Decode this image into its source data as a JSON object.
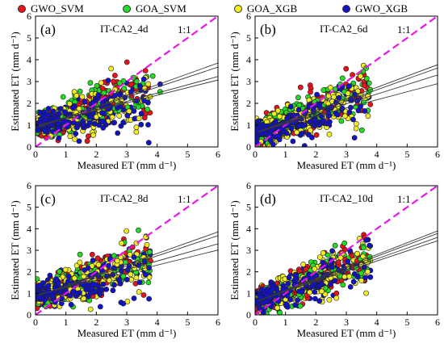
{
  "legend": [
    {
      "name": "GWO_SVM",
      "color": "#e8131b"
    },
    {
      "name": "GOA_SVM",
      "color": "#22dd22"
    },
    {
      "name": "GOA_XGB",
      "color": "#f2ee22"
    },
    {
      "name": "GWO_XGB",
      "color": "#1212c8"
    }
  ],
  "chart_data": [
    {
      "type": "scatter",
      "panel_label": "(a)",
      "title": "IT-CA2_4d",
      "line_label": "1:1",
      "xlabel": "Measured ET (mm d⁻¹)",
      "ylabel": "Estimated ET (mm d⁻¹)",
      "xlim": [
        0,
        6
      ],
      "ylim": [
        0,
        6
      ],
      "xticks": [
        "0",
        "1",
        "2",
        "3",
        "4",
        "5",
        "6"
      ],
      "yticks": [
        "0",
        "1",
        "2",
        "3",
        "4",
        "5",
        "6"
      ],
      "measured_range": [
        0.1,
        4.0
      ],
      "series": [
        {
          "name": "GWO_SVM",
          "fit": {
            "slope": 0.5,
            "intercept": 0.85
          }
        },
        {
          "name": "GOA_SVM",
          "fit": {
            "slope": 0.46,
            "intercept": 0.9
          }
        },
        {
          "name": "GOA_XGB",
          "fit": {
            "slope": 0.38,
            "intercept": 0.95
          }
        },
        {
          "name": "GWO_XGB",
          "fit": {
            "slope": 0.35,
            "intercept": 0.97
          }
        }
      ]
    },
    {
      "type": "scatter",
      "panel_label": "(b)",
      "title": "IT-CA2_6d",
      "line_label": "1:1",
      "xlabel": "Measured ET (mm d⁻¹)",
      "ylabel": "Estimated ET (mm d⁻¹)",
      "xlim": [
        0,
        6
      ],
      "ylim": [
        0,
        6
      ],
      "xticks": [
        "0",
        "1",
        "2",
        "3",
        "4",
        "5",
        "6"
      ],
      "yticks": [
        "0",
        "1",
        "2",
        "3",
        "4",
        "5",
        "6"
      ],
      "measured_range": [
        0.1,
        4.0
      ],
      "series": [
        {
          "name": "GWO_SVM",
          "fit": {
            "slope": 0.52,
            "intercept": 0.65
          }
        },
        {
          "name": "GOA_SVM",
          "fit": {
            "slope": 0.5,
            "intercept": 0.62
          }
        },
        {
          "name": "GOA_XGB",
          "fit": {
            "slope": 0.44,
            "intercept": 0.66
          }
        },
        {
          "name": "GWO_XGB",
          "fit": {
            "slope": 0.37,
            "intercept": 0.68
          }
        }
      ]
    },
    {
      "type": "scatter",
      "panel_label": "(c)",
      "title": "IT-CA2_8d",
      "line_label": "1:1",
      "xlabel": "Measured ET (mm d⁻¹)",
      "ylabel": "Estimated ET (mm d⁻¹)",
      "xlim": [
        0,
        6
      ],
      "ylim": [
        0,
        6
      ],
      "xticks": [
        "0",
        "1",
        "2",
        "3",
        "4",
        "5",
        "6"
      ],
      "yticks": [
        "0",
        "1",
        "2",
        "3",
        "4",
        "5",
        "6"
      ],
      "measured_range": [
        0.1,
        4.0
      ],
      "series": [
        {
          "name": "GWO_SVM",
          "fit": {
            "slope": 0.5,
            "intercept": 0.85
          }
        },
        {
          "name": "GOA_SVM",
          "fit": {
            "slope": 0.47,
            "intercept": 0.86
          }
        },
        {
          "name": "GOA_XGB",
          "fit": {
            "slope": 0.4,
            "intercept": 0.9
          }
        },
        {
          "name": "GWO_XGB",
          "fit": {
            "slope": 0.35,
            "intercept": 0.91
          }
        }
      ]
    },
    {
      "type": "scatter",
      "panel_label": "(d)",
      "title": "IT-CA2_10d",
      "line_label": "1:1",
      "xlabel": "Measured ET (mm d⁻¹)",
      "ylabel": "Estimated ET (mm d⁻¹)",
      "xlim": [
        0,
        6
      ],
      "ylim": [
        0,
        6
      ],
      "xticks": [
        "0",
        "1",
        "2",
        "3",
        "4",
        "5",
        "6"
      ],
      "yticks": [
        "0",
        "1",
        "2",
        "3",
        "4",
        "5",
        "6"
      ],
      "measured_range": [
        0.1,
        4.0
      ],
      "series": [
        {
          "name": "GWO_SVM",
          "fit": {
            "slope": 0.55,
            "intercept": 0.6
          }
        },
        {
          "name": "GOA_SVM",
          "fit": {
            "slope": 0.53,
            "intercept": 0.6
          }
        },
        {
          "name": "GOA_XGB",
          "fit": {
            "slope": 0.5,
            "intercept": 0.6
          }
        },
        {
          "name": "GWO_XGB",
          "fit": {
            "slope": 0.47,
            "intercept": 0.62
          }
        }
      ]
    }
  ]
}
